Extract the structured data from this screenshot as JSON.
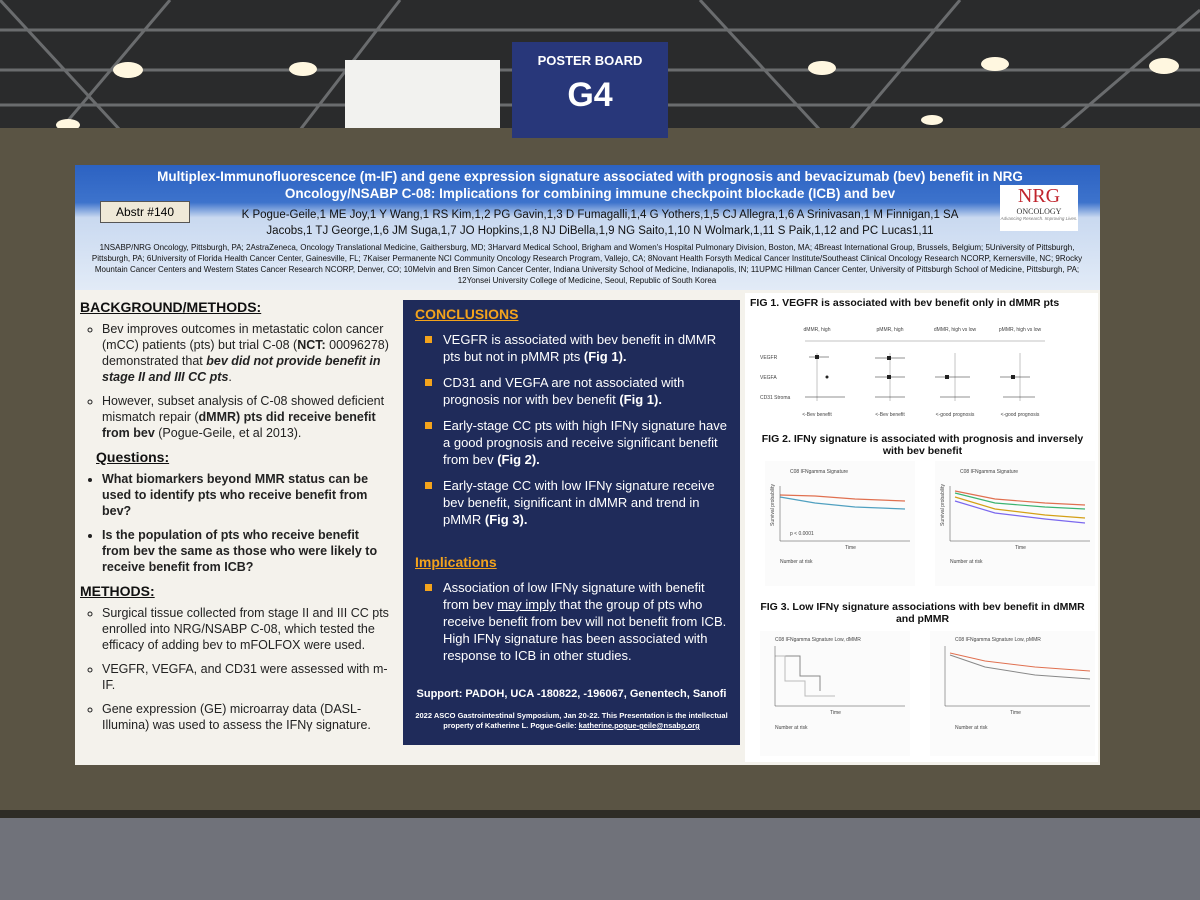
{
  "sign": {
    "label": "POSTER BOARD",
    "code": "G4"
  },
  "poster": {
    "title": "Multiplex-Immunofluorescence (m-IF) and gene expression signature associated with prognosis and bevacizumab (bev) benefit in NRG Oncology/NSABP C-08: Implications for combining immune checkpoint blockade (ICB) and bev",
    "abstract": "Abstr #140",
    "authors": "K Pogue-Geile,1 ME Joy,1 Y Wang,1 RS Kim,1,2 PG Gavin,1,3 D Fumagalli,1,4 G Yothers,1,5 CJ Allegra,1,6 A Srinivasan,1 M Finnigan,1 SA Jacobs,1 TJ George,1,6 JM Suga,1,7 JO Hopkins,1,8 NJ DiBella,1,9 NG Saito,1,10 N Wolmark,1,11 S Paik,1,12 and PC Lucas1,11",
    "affiliations": "1NSABP/NRG Oncology, Pittsburgh, PA; 2AstraZeneca, Oncology Translational Medicine, Gaithersburg, MD; 3Harvard Medical School, Brigham and Women's Hospital Pulmonary Division, Boston, MA; 4Breast International Group, Brussels, Belgium; 5University of Pittsburgh, Pittsburgh, PA; 6University of Florida Health Cancer Center, Gainesville, FL; 7Kaiser Permanente NCI Community Oncology Research Program, Vallejo, CA; 8Novant Health Forsyth Medical Cancer Institute/Southeast Clinical Oncology Research NCORP, Kernersville, NC; 9Rocky Mountain Cancer Centers and Western States Cancer Research NCORP, Denver, CO; 10Melvin and Bren Simon Cancer Center, Indiana University School of Medicine, Indianapolis, IN; 11UPMC Hillman Cancer Center, University of Pittsburgh School of Medicine, Pittsburgh, PA; 12Yonsei University College of Medicine, Seoul, Republic of South Korea",
    "logo": {
      "name": "NRG",
      "sub": "ONCOLOGY",
      "tagline": "Advancing Research. Improving Lives."
    },
    "background": {
      "heading": "BACKGROUND/METHODS:",
      "bullets": [
        [
          "Bev improves outcomes in metastatic colon cancer (mCC) patients (pts) but trial C-08 (",
          {
            "text": "NCT:",
            "style": "b"
          },
          " 00096278) demonstrated that ",
          {
            "text": "bev did not provide benefit in stage II and III CC pts",
            "style": "bi"
          },
          "."
        ],
        [
          "However, subset analysis of C-08 showed deficient mismatch repair (",
          {
            "text": "dMMR) pts did receive benefit from bev",
            "style": "b"
          },
          " (Pogue-Geile, et al 2013)."
        ]
      ]
    },
    "questions": {
      "heading": "Questions:",
      "bullets": [
        [
          {
            "text": "What biomarkers beyond MMR status can be used to identify pts who receive benefit from bev?",
            "style": "b"
          }
        ],
        [
          {
            "text": "Is the population of pts who receive benefit from bev the same as those who were likely to receive benefit from ICB?",
            "style": "b"
          }
        ]
      ]
    },
    "methods": {
      "heading": "METHODS:",
      "bullets": [
        [
          "Surgical tissue collected from stage II and III CC pts enrolled into NRG/NSABP C-08, which tested the efficacy of adding bev to mFOLFOX were used."
        ],
        [
          "VEGFR, VEGFA, and CD31 were assessed with m-IF."
        ],
        [
          "Gene expression (GE) microarray data (DASL-Illumina) was used to assess the IFNγ signature."
        ]
      ]
    },
    "conclusions": {
      "heading": "CONCLUSIONS",
      "bullets": [
        [
          "VEGFR is associated with bev benefit in dMMR pts but not in pMMR pts ",
          {
            "text": "(Fig 1).",
            "style": "b"
          }
        ],
        [
          "CD31 and VEGFA are not associated with prognosis nor with bev benefit ",
          {
            "text": "(Fig 1).",
            "style": "b"
          }
        ],
        [
          "Early-stage CC pts with high IFNγ  signature have a good prognosis and receive significant benefit from bev ",
          {
            "text": "(Fig 2).",
            "style": "b"
          }
        ],
        [
          "Early-stage CC with low IFNγ signature receive bev benefit, significant in dMMR and trend in pMMR ",
          {
            "text": "(Fig 3).",
            "style": "b"
          }
        ]
      ]
    },
    "implications": {
      "heading": "Implications",
      "bullets": [
        [
          "Association of low IFNγ  signature with benefit from bev ",
          {
            "text": "may imply",
            "style": "u"
          },
          " that the group of pts who receive benefit from bev will not benefit from ICB.  High IFNγ signature has been associated with response to ICB in other studies."
        ]
      ]
    },
    "support": "Support: PADOH, UCA -180822, -196067, Genentech, Sanofi",
    "footer": [
      "2022 ASCO Gastrointestinal Symposium, Jan 20-22. This Presentation is the intellectual property of Katherine L. Pogue-Geile: ",
      {
        "text": "katherine.pogue-geile@nsabp.org",
        "style": "u"
      }
    ],
    "figures": [
      {
        "title": "FIG 1.  VEGFR is associated with bev benefit only in dMMR pts",
        "columns": [
          "dMMR, high",
          "pMMR, high",
          "dMMR, high vs low",
          "pMMR, high vs low"
        ],
        "rows": [
          "VEGFR",
          "VEGFA",
          "CD31 Stroma"
        ],
        "axis_labels": [
          "<-Bev benefit",
          "<-Bev benefit",
          "<-good prognosis",
          "<-good prognosis"
        ]
      },
      {
        "title": "FIG 2.  IFNγ signature is associated with prognosis and inversely with bev benefit",
        "panels": [
          "C08 IFNgamma Signature",
          "C08 IFNgamma Signature"
        ],
        "y_label": "Survival probability",
        "x_label": "Time",
        "risk_label": "Number at risk",
        "p_value": "p < 0.0001"
      },
      {
        "title": "FIG 3.  Low IFNγ signature associations with bev benefit in dMMR and pMMR",
        "panels": [
          "C08 IFNgamma Signature Low, dMMR",
          "C08 IFNgamma Signature Low, pMMR"
        ],
        "x_label": "Time",
        "risk_label": "Number at risk"
      }
    ]
  }
}
